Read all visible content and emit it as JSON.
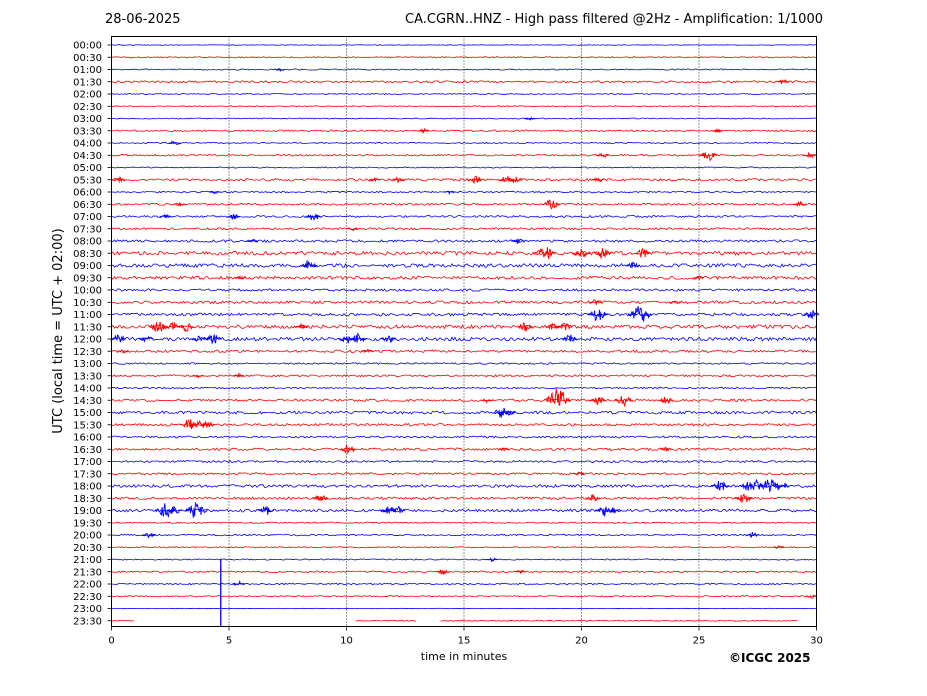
{
  "header": {
    "date": "28-06-2025",
    "title": "CA.CGRN..HNZ - High pass filtered @2Hz - Amplification: 1/1000"
  },
  "copyright": "©ICGC 2025",
  "colors": {
    "odd_row": "#ff0000",
    "even_row": "#0000ff",
    "grid": "#000000",
    "frame": "#000000"
  },
  "chart_data": {
    "type": "line",
    "chart_kind": "helicorder",
    "xlabel": "time in minutes",
    "ylabel": "UTC (local time = UTC + 02:00)",
    "xlim": [
      0,
      30
    ],
    "x_ticks": [
      0,
      5,
      10,
      15,
      20,
      25,
      30
    ],
    "grid": "vertical dotted lines at 5-minute ticks",
    "row_labels": [
      "00:00",
      "00:30",
      "01:00",
      "01:30",
      "02:00",
      "02:30",
      "03:00",
      "03:30",
      "04:00",
      "04:30",
      "05:00",
      "05:30",
      "06:00",
      "06:30",
      "07:00",
      "07:30",
      "08:00",
      "08:30",
      "09:00",
      "09:30",
      "10:00",
      "10:30",
      "11:00",
      "11:30",
      "12:00",
      "12:30",
      "13:00",
      "13:30",
      "14:00",
      "14:30",
      "15:00",
      "15:30",
      "16:00",
      "16:30",
      "17:00",
      "17:30",
      "18:00",
      "18:30",
      "19:00",
      "19:30",
      "20:00",
      "20:30",
      "21:00",
      "21:30",
      "22:00",
      "22:30",
      "23:00",
      "23:30"
    ],
    "row_noise": [
      0.3,
      0.6,
      0.6,
      1.0,
      0.5,
      0.5,
      0.5,
      0.8,
      0.6,
      0.8,
      0.6,
      1.2,
      0.8,
      1.0,
      1.0,
      1.0,
      1.2,
      1.8,
      1.8,
      1.6,
      1.2,
      1.4,
      1.4,
      1.8,
      1.8,
      1.2,
      0.8,
      1.0,
      0.8,
      1.2,
      1.4,
      1.2,
      1.0,
      1.2,
      1.0,
      1.0,
      1.4,
      1.2,
      1.4,
      0.6,
      0.8,
      0.6,
      0.6,
      0.8,
      0.8,
      0.6,
      0.2,
      0.5
    ],
    "events": [
      {
        "row": 2,
        "t": 7.2,
        "amp": 1.5
      },
      {
        "row": 3,
        "t": 28.6,
        "amp": 3
      },
      {
        "row": 6,
        "t": 17.8,
        "amp": 2
      },
      {
        "row": 7,
        "t": 13.3,
        "amp": 2
      },
      {
        "row": 7,
        "t": 25.8,
        "amp": 2
      },
      {
        "row": 8,
        "t": 2.7,
        "amp": 3
      },
      {
        "row": 9,
        "t": 20.9,
        "amp": 3
      },
      {
        "row": 9,
        "t": 25.4,
        "amp": 6
      },
      {
        "row": 9,
        "t": 29.7,
        "amp": 3
      },
      {
        "row": 11,
        "t": 0.3,
        "amp": 3
      },
      {
        "row": 11,
        "t": 11.2,
        "amp": 2
      },
      {
        "row": 11,
        "t": 12.2,
        "amp": 3
      },
      {
        "row": 11,
        "t": 15.5,
        "amp": 4
      },
      {
        "row": 11,
        "t": 16.8,
        "amp": 5
      },
      {
        "row": 11,
        "t": 17.2,
        "amp": 4
      },
      {
        "row": 11,
        "t": 20.7,
        "amp": 3
      },
      {
        "row": 12,
        "t": 4.4,
        "amp": 2
      },
      {
        "row": 12,
        "t": 14.4,
        "amp": 2
      },
      {
        "row": 13,
        "t": 2.9,
        "amp": 2
      },
      {
        "row": 13,
        "t": 18.7,
        "amp": 6
      },
      {
        "row": 13,
        "t": 29.3,
        "amp": 3
      },
      {
        "row": 14,
        "t": 2.3,
        "amp": 2
      },
      {
        "row": 14,
        "t": 5.2,
        "amp": 3
      },
      {
        "row": 14,
        "t": 8.6,
        "amp": 5
      },
      {
        "row": 15,
        "t": 10.3,
        "amp": 2
      },
      {
        "row": 16,
        "t": 6.0,
        "amp": 2
      },
      {
        "row": 16,
        "t": 17.3,
        "amp": 3
      },
      {
        "row": 17,
        "t": 18.4,
        "amp": 9
      },
      {
        "row": 17,
        "t": 20.0,
        "amp": 6
      },
      {
        "row": 17,
        "t": 20.9,
        "amp": 6
      },
      {
        "row": 17,
        "t": 22.6,
        "amp": 5
      },
      {
        "row": 18,
        "t": 8.4,
        "amp": 6
      },
      {
        "row": 18,
        "t": 22.2,
        "amp": 4
      },
      {
        "row": 19,
        "t": 5.5,
        "amp": 2
      },
      {
        "row": 19,
        "t": 25.0,
        "amp": 2
      },
      {
        "row": 21,
        "t": 20.6,
        "amp": 3
      },
      {
        "row": 21,
        "t": 24.0,
        "amp": 2
      },
      {
        "row": 22,
        "t": 20.7,
        "amp": 8
      },
      {
        "row": 22,
        "t": 22.5,
        "amp": 10
      },
      {
        "row": 22,
        "t": 29.8,
        "amp": 5
      },
      {
        "row": 23,
        "t": 2.0,
        "amp": 7
      },
      {
        "row": 23,
        "t": 2.6,
        "amp": 5
      },
      {
        "row": 23,
        "t": 3.2,
        "amp": 5
      },
      {
        "row": 23,
        "t": 8.1,
        "amp": 3
      },
      {
        "row": 23,
        "t": 17.6,
        "amp": 5
      },
      {
        "row": 23,
        "t": 18.8,
        "amp": 4
      },
      {
        "row": 23,
        "t": 19.3,
        "amp": 4
      },
      {
        "row": 24,
        "t": 0.3,
        "amp": 5
      },
      {
        "row": 24,
        "t": 1.5,
        "amp": 4
      },
      {
        "row": 24,
        "t": 3.7,
        "amp": 3
      },
      {
        "row": 24,
        "t": 4.3,
        "amp": 6
      },
      {
        "row": 24,
        "t": 10.0,
        "amp": 5
      },
      {
        "row": 24,
        "t": 10.5,
        "amp": 6
      },
      {
        "row": 24,
        "t": 11.8,
        "amp": 4
      },
      {
        "row": 24,
        "t": 19.5,
        "amp": 5
      },
      {
        "row": 25,
        "t": 0.5,
        "amp": 2
      },
      {
        "row": 25,
        "t": 10.9,
        "amp": 2
      },
      {
        "row": 27,
        "t": 3.7,
        "amp": 2
      },
      {
        "row": 27,
        "t": 5.4,
        "amp": 2
      },
      {
        "row": 29,
        "t": 16.0,
        "amp": 3
      },
      {
        "row": 29,
        "t": 19.0,
        "amp": 12
      },
      {
        "row": 29,
        "t": 20.7,
        "amp": 5
      },
      {
        "row": 29,
        "t": 21.8,
        "amp": 6
      },
      {
        "row": 29,
        "t": 23.6,
        "amp": 4
      },
      {
        "row": 30,
        "t": 16.6,
        "amp": 6
      },
      {
        "row": 30,
        "t": 16.9,
        "amp": 4
      },
      {
        "row": 31,
        "t": 3.3,
        "amp": 6
      },
      {
        "row": 31,
        "t": 3.8,
        "amp": 5
      },
      {
        "row": 31,
        "t": 4.1,
        "amp": 4
      },
      {
        "row": 33,
        "t": 10.1,
        "amp": 5
      },
      {
        "row": 33,
        "t": 16.7,
        "amp": 2
      },
      {
        "row": 33,
        "t": 23.6,
        "amp": 2
      },
      {
        "row": 35,
        "t": 19.9,
        "amp": 2
      },
      {
        "row": 36,
        "t": 25.9,
        "amp": 6
      },
      {
        "row": 36,
        "t": 27.3,
        "amp": 10
      },
      {
        "row": 36,
        "t": 28.0,
        "amp": 8
      },
      {
        "row": 36,
        "t": 28.5,
        "amp": 6
      },
      {
        "row": 37,
        "t": 8.9,
        "amp": 5
      },
      {
        "row": 37,
        "t": 20.5,
        "amp": 4
      },
      {
        "row": 37,
        "t": 26.9,
        "amp": 6
      },
      {
        "row": 38,
        "t": 2.3,
        "amp": 8
      },
      {
        "row": 38,
        "t": 2.7,
        "amp": 5
      },
      {
        "row": 38,
        "t": 3.6,
        "amp": 9
      },
      {
        "row": 38,
        "t": 6.6,
        "amp": 5
      },
      {
        "row": 38,
        "t": 11.8,
        "amp": 5
      },
      {
        "row": 38,
        "t": 12.2,
        "amp": 4
      },
      {
        "row": 38,
        "t": 21.0,
        "amp": 6
      },
      {
        "row": 38,
        "t": 21.4,
        "amp": 4
      },
      {
        "row": 40,
        "t": 1.6,
        "amp": 3
      },
      {
        "row": 40,
        "t": 27.3,
        "amp": 3
      },
      {
        "row": 41,
        "t": 28.4,
        "amp": 2
      },
      {
        "row": 42,
        "t": 16.2,
        "amp": 2
      },
      {
        "row": 43,
        "t": 14.1,
        "amp": 3
      },
      {
        "row": 43,
        "t": 17.4,
        "amp": 2
      },
      {
        "row": 44,
        "t": 5.4,
        "amp": 3
      },
      {
        "row": 45,
        "t": 29.8,
        "amp": 2
      }
    ],
    "spike": {
      "t": 4.65,
      "from_row": 42,
      "to_row": 47
    },
    "last_row_segments": [
      [
        0,
        1.0
      ],
      [
        10.4,
        13.0
      ],
      [
        14.0,
        29.2
      ]
    ]
  }
}
